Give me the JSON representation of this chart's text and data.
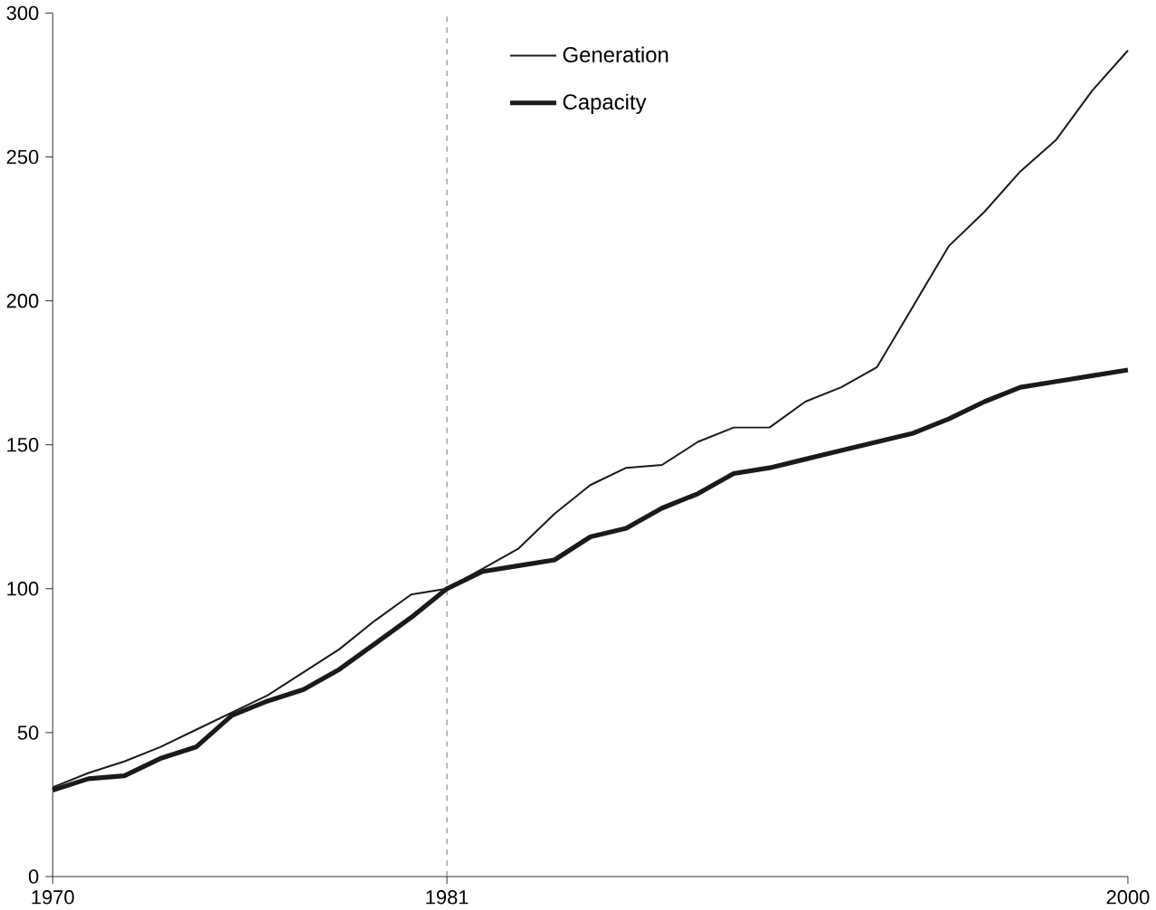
{
  "chart_data": {
    "type": "line",
    "x": [
      1970,
      1971,
      1972,
      1973,
      1974,
      1975,
      1976,
      1977,
      1978,
      1979,
      1980,
      1981,
      1982,
      1983,
      1984,
      1985,
      1986,
      1987,
      1988,
      1989,
      1990,
      1991,
      1992,
      1993,
      1994,
      1995,
      1996,
      1997,
      1998,
      1999,
      2000
    ],
    "series": [
      {
        "name": "Generation",
        "color": "#1a1a1a",
        "values": [
          31,
          36,
          40,
          45,
          51,
          57,
          63,
          71,
          79,
          89,
          98,
          100,
          107,
          114,
          126,
          136,
          142,
          143,
          151,
          156,
          156,
          165,
          170,
          177,
          198,
          219,
          231,
          245,
          256,
          273,
          287
        ]
      },
      {
        "name": "Capacity",
        "color": "#1a1a1a",
        "values": [
          30,
          34,
          35,
          41,
          45,
          56,
          61,
          65,
          72,
          81,
          90,
          100,
          106,
          108,
          110,
          118,
          121,
          128,
          133,
          140,
          142,
          145,
          148,
          151,
          154,
          159,
          165,
          170,
          172,
          174,
          176
        ]
      }
    ],
    "xlim": [
      1970,
      2000
    ],
    "xticks": [
      1970,
      1981,
      2000
    ],
    "ylim": [
      0,
      300
    ],
    "yticks": [
      0,
      50,
      100,
      150,
      200,
      250,
      300
    ],
    "ref_lines": [
      {
        "axis": "x",
        "value": 1981,
        "line_style": "dashed",
        "color": "#555555"
      }
    ],
    "legend": "top",
    "grid": false,
    "marker": "none",
    "line_style": "solid"
  }
}
